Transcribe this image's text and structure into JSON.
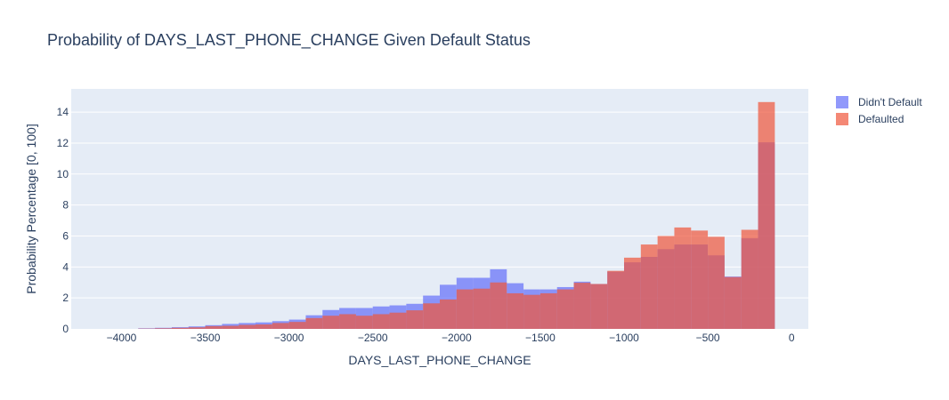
{
  "chart_data": {
    "type": "bar",
    "title": "Probability of DAYS_LAST_PHONE_CHANGE Given Default Status",
    "xlabel": "DAYS_LAST_PHONE_CHANGE",
    "ylabel": "Probability Percentage [0, 100]",
    "xlim": [
      -4300,
      100
    ],
    "ylim": [
      0,
      15.5
    ],
    "x_ticks": [
      -4000,
      -3500,
      -3000,
      -2500,
      -2000,
      -1500,
      -1000,
      -500,
      0
    ],
    "x_tick_labels": [
      "−4000",
      "−3500",
      "−3000",
      "−2500",
      "−2000",
      "−1500",
      "−1000",
      "−500",
      "0"
    ],
    "y_ticks": [
      0,
      2,
      4,
      6,
      8,
      10,
      12,
      14
    ],
    "y_tick_labels": [
      "0",
      "2",
      "4",
      "6",
      "8",
      "10",
      "12",
      "14"
    ],
    "grid": true,
    "barmode": "overlay",
    "bin_width": 100,
    "bin_start": -3900,
    "legend_position": "top-right",
    "series": [
      {
        "name": "Didn't Default",
        "color": "#636efa",
        "opacity": 0.7,
        "values": [
          0.04,
          0.07,
          0.11,
          0.16,
          0.24,
          0.32,
          0.38,
          0.42,
          0.5,
          0.6,
          0.88,
          1.22,
          1.35,
          1.35,
          1.45,
          1.52,
          1.62,
          2.15,
          2.85,
          3.3,
          3.3,
          3.85,
          2.95,
          2.55,
          2.55,
          2.7,
          3.05,
          2.9,
          3.7,
          4.3,
          4.65,
          5.15,
          5.45,
          5.45,
          4.75,
          3.38,
          5.85,
          12.05
        ]
      },
      {
        "name": "Defaulted",
        "color": "#ef553b",
        "opacity": 0.7,
        "values": [
          0.02,
          0.04,
          0.07,
          0.1,
          0.18,
          0.2,
          0.26,
          0.29,
          0.38,
          0.45,
          0.7,
          0.85,
          0.95,
          0.85,
          0.95,
          1.05,
          1.2,
          1.65,
          1.9,
          2.55,
          2.6,
          3.0,
          2.3,
          2.2,
          2.3,
          2.55,
          2.98,
          2.9,
          3.75,
          4.6,
          5.45,
          6.0,
          6.55,
          6.35,
          5.95,
          3.35,
          6.4,
          14.65
        ]
      }
    ]
  }
}
